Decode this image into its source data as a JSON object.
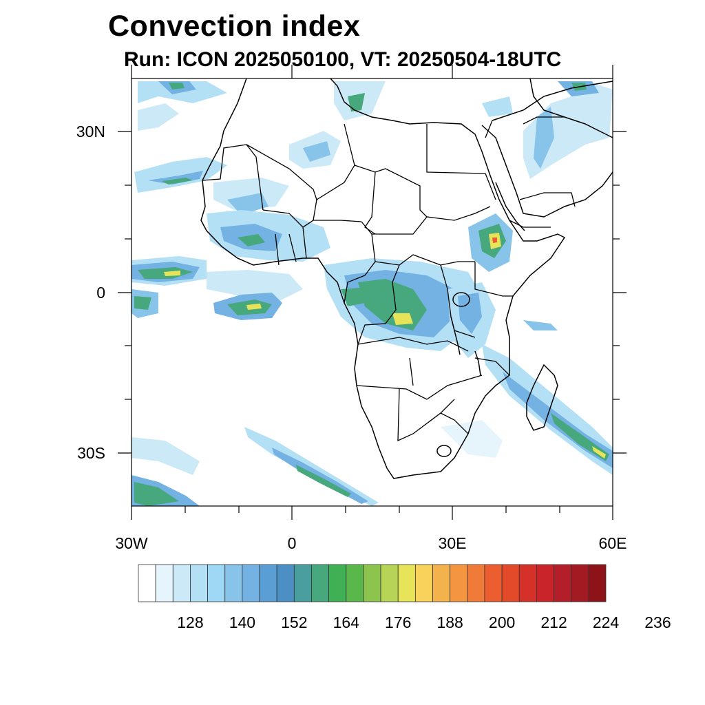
{
  "title": "Convection index",
  "subtitle": "Run: ICON 2025050100,  VT: 20250504-18UTC",
  "axes": {
    "lon_range": [
      -30,
      60
    ],
    "lat_range": [
      -40,
      40
    ],
    "x_ticks": [
      {
        "value": -30,
        "label": "30W"
      },
      {
        "value": 0,
        "label": "0"
      },
      {
        "value": 30,
        "label": "30E"
      },
      {
        "value": 60,
        "label": "60E"
      }
    ],
    "y_ticks": [
      {
        "value": 30,
        "label": "30N"
      },
      {
        "value": 0,
        "label": "0"
      },
      {
        "value": -30,
        "label": "30S"
      }
    ]
  },
  "colorbar": {
    "labels": [
      "128",
      "140",
      "152",
      "164",
      "176",
      "188",
      "200",
      "212",
      "224",
      "236"
    ],
    "colors": [
      "#ffffff",
      "#e6f5fc",
      "#cce9f7",
      "#b4e0f6",
      "#9ed8f4",
      "#88c4ea",
      "#73b2e2",
      "#5a9ed6",
      "#4b8fc4",
      "#4a9e9e",
      "#46a87c",
      "#3fb054",
      "#5ab84a",
      "#8cc44e",
      "#b6d455",
      "#e8e45a",
      "#f8d25a",
      "#f4b24c",
      "#f49640",
      "#f07a38",
      "#ec5e30",
      "#e24a2a",
      "#d63128",
      "#c8242a",
      "#b41e28",
      "#a21a22",
      "#8c1418"
    ]
  },
  "map_colors": {
    "land_outline": "#000000",
    "light": "#b4e0f6",
    "mid": "#73b2e2",
    "green": "#46a87c",
    "yellow": "#e8e45a",
    "red": "#ec5e30"
  }
}
